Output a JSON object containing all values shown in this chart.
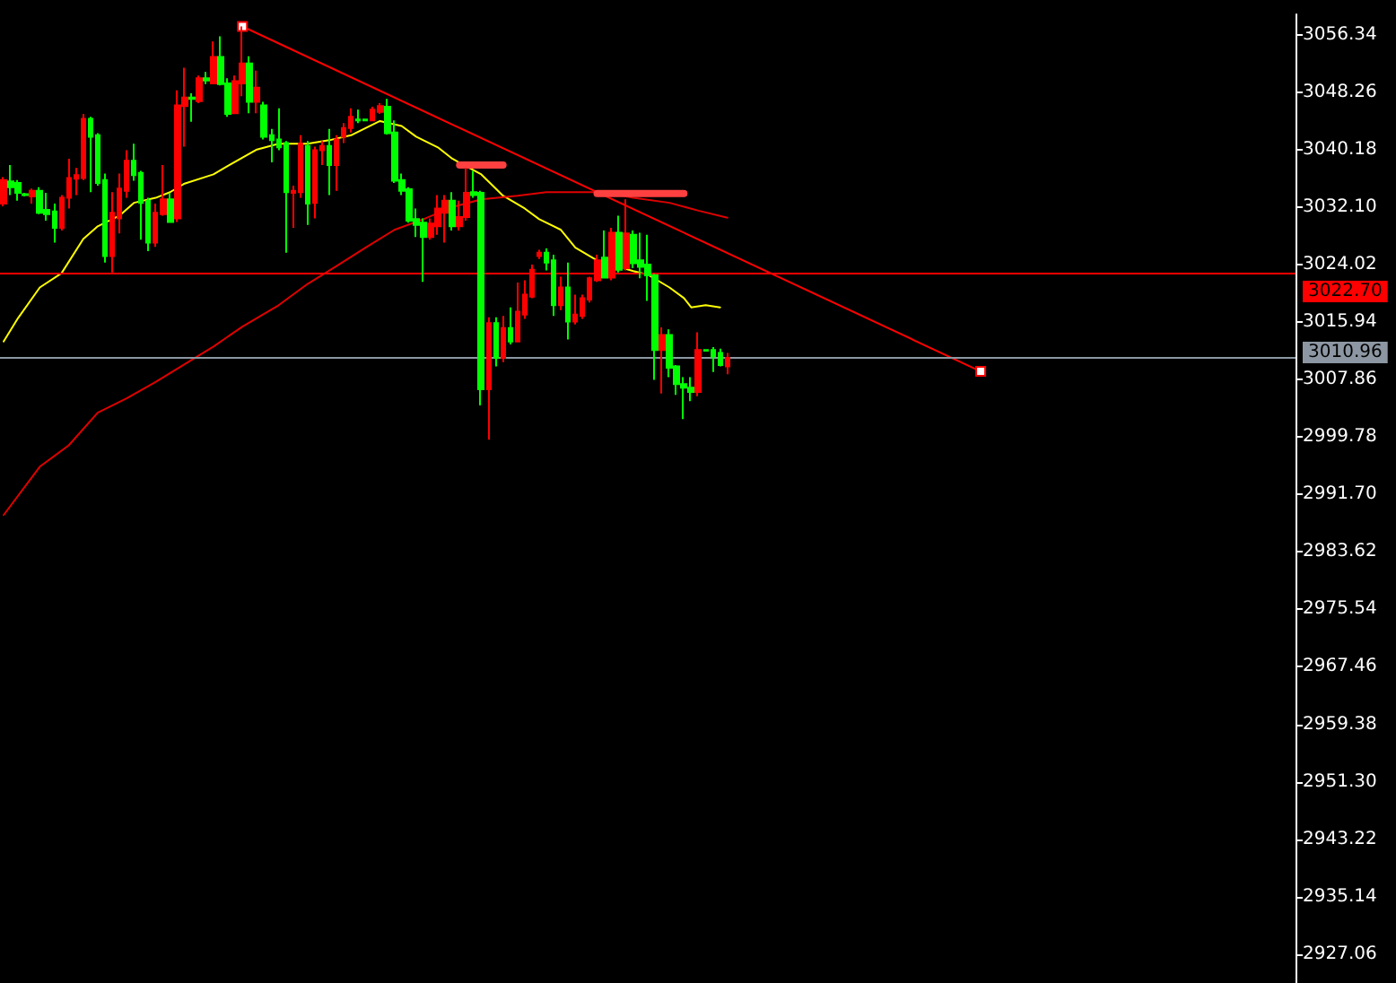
{
  "chart_data": {
    "type": "candlestick",
    "categories": [
      null,
      null,
      null,
      null,
      null,
      null,
      null,
      null,
      null,
      null,
      null,
      null,
      null,
      null,
      null,
      null,
      null,
      null,
      null,
      null,
      null,
      null,
      null,
      null,
      null,
      null,
      null,
      null,
      null,
      null,
      null,
      null,
      null,
      null,
      null,
      null,
      null,
      null,
      null,
      null,
      null,
      null,
      null,
      null,
      null,
      null,
      null,
      null,
      null,
      null,
      null,
      null,
      null,
      null,
      null,
      null,
      null,
      null,
      null,
      null,
      null,
      null,
      null,
      null,
      null,
      null,
      null,
      null,
      null,
      null,
      null,
      null,
      null,
      null,
      null,
      null,
      null,
      null,
      null,
      null,
      null,
      null,
      null,
      null,
      null,
      null,
      null,
      null,
      null,
      null,
      null,
      null,
      null,
      null,
      null,
      null,
      null,
      null,
      null,
      null,
      null,
      null,
      null,
      null,
      null,
      null,
      null,
      null,
      null,
      null,
      null,
      null,
      null,
      null,
      null,
      null,
      null,
      null,
      null,
      null,
      null,
      null,
      null,
      null,
      null,
      null,
      null,
      null,
      null,
      null,
      null,
      null,
      null,
      null,
      null,
      null,
      null,
      null,
      null,
      null,
      null,
      null,
      null,
      null,
      null,
      null,
      null,
      null,
      null,
      null,
      null,
      null,
      null,
      null,
      null,
      null,
      null,
      null,
      null,
      null,
      null,
      null,
      null,
      null,
      null,
      null,
      null,
      null,
      null,
      null,
      null,
      null,
      null,
      null,
      null,
      null,
      null,
      null,
      null
    ],
    "ohlc": [
      [
        3032.6,
        3036.3,
        3032.2,
        3035.9
      ],
      [
        3035.7,
        3038.0,
        3033.8,
        3034.9
      ],
      [
        3035.5,
        3035.9,
        3033.0,
        3034.1
      ],
      [
        3033.9,
        3034.1,
        3033.6,
        3033.8
      ],
      [
        3033.6,
        3034.7,
        3032.6,
        3034.4
      ],
      [
        3034.4,
        3034.9,
        3031.1,
        3031.3
      ],
      [
        3031.7,
        3034.1,
        3030.2,
        3031.1
      ],
      [
        3031.5,
        3032.6,
        3027.1,
        3029.2
      ],
      [
        3029.2,
        3033.8,
        3028.8,
        3033.4
      ],
      [
        3033.4,
        3038.9,
        3031.9,
        3036.2
      ],
      [
        3036.1,
        3037.6,
        3033.8,
        3036.6
      ],
      [
        3036.2,
        3045.2,
        3035.9,
        3044.5
      ],
      [
        3044.5,
        3044.8,
        3034.2,
        3042.0
      ],
      [
        3042.2,
        3042.5,
        3035.1,
        3035.5
      ],
      [
        3035.9,
        3036.8,
        3024.3,
        3025.2
      ],
      [
        3025.2,
        3034.2,
        3022.9,
        3031.3
      ],
      [
        3030.5,
        3036.8,
        3028.4,
        3034.7
      ],
      [
        3034.4,
        3040.1,
        3033.4,
        3038.6
      ],
      [
        3038.6,
        3041.0,
        3035.8,
        3036.6
      ],
      [
        3036.9,
        3037.2,
        3027.5,
        3032.7
      ],
      [
        3033.0,
        3033.4,
        3025.9,
        3027.1
      ],
      [
        3027.1,
        3032.6,
        3026.5,
        3031.3
      ],
      [
        3031.1,
        3038.0,
        3030.9,
        3033.2
      ],
      [
        3033.2,
        3034.1,
        3029.9,
        3030.0
      ],
      [
        3030.5,
        3048.5,
        3030.0,
        3046.4
      ],
      [
        3046.3,
        3051.7,
        3040.6,
        3047.5
      ],
      [
        3047.5,
        3048.1,
        3044.1,
        3047.3
      ],
      [
        3047.0,
        3050.6,
        3046.7,
        3050.2
      ],
      [
        3050.2,
        3051.1,
        3049.4,
        3049.9
      ],
      [
        3049.5,
        3055.4,
        3049.4,
        3053.2
      ],
      [
        3053.2,
        3056.1,
        3049.2,
        3049.4
      ],
      [
        3049.5,
        3050.2,
        3044.8,
        3045.2
      ],
      [
        3045.3,
        3050.6,
        3045.2,
        3049.8
      ],
      [
        3049.5,
        3057.5,
        3047.7,
        3052.3
      ],
      [
        3052.3,
        3053.3,
        3045.3,
        3046.9
      ],
      [
        3046.9,
        3051.3,
        3045.3,
        3048.9
      ],
      [
        3046.4,
        3046.9,
        3041.6,
        3042.0
      ],
      [
        3042.2,
        3043.1,
        3038.4,
        3041.5
      ],
      [
        3041.6,
        3046.0,
        3040.1,
        3040.5
      ],
      [
        3041.1,
        3041.4,
        3025.7,
        3034.2
      ],
      [
        3034.1,
        3035.1,
        3029.2,
        3034.4
      ],
      [
        3034.2,
        3042.2,
        3033.4,
        3041.0
      ],
      [
        3040.7,
        3041.4,
        3029.6,
        3032.6
      ],
      [
        3032.7,
        3040.6,
        3030.5,
        3040.1
      ],
      [
        3040.1,
        3041.4,
        3038.0,
        3040.7
      ],
      [
        3040.7,
        3043.1,
        3033.8,
        3038.0
      ],
      [
        3038.0,
        3042.2,
        3034.4,
        3041.6
      ],
      [
        3042.0,
        3043.9,
        3041.1,
        3043.2
      ],
      [
        3043.2,
        3046.0,
        3042.6,
        3044.8
      ],
      [
        3044.4,
        3045.8,
        3043.9,
        3044.3
      ],
      [
        3044.4,
        3044.5,
        3044.2,
        3044.3
      ],
      [
        3044.3,
        3046.2,
        3044.2,
        3045.8
      ],
      [
        3045.5,
        3046.7,
        3045.2,
        3046.3
      ],
      [
        3046.2,
        3047.3,
        3042.3,
        3042.5
      ],
      [
        3042.6,
        3044.3,
        3035.5,
        3035.8
      ],
      [
        3035.9,
        3036.8,
        3033.8,
        3034.4
      ],
      [
        3034.6,
        3034.9,
        3029.9,
        3030.2
      ],
      [
        3030.4,
        3031.9,
        3027.9,
        3029.6
      ],
      [
        3029.9,
        3030.5,
        3021.6,
        3027.9
      ],
      [
        3027.9,
        3030.5,
        3027.5,
        3029.8
      ],
      [
        3029.4,
        3033.8,
        3028.2,
        3031.9
      ],
      [
        3031.3,
        3033.8,
        3027.1,
        3033.0
      ],
      [
        3033.0,
        3034.2,
        3028.8,
        3029.4
      ],
      [
        3029.4,
        3033.0,
        3028.8,
        3030.7
      ],
      [
        3030.7,
        3037.6,
        3030.2,
        3034.1
      ],
      [
        3034.2,
        3037.2,
        3033.4,
        3033.8
      ],
      [
        3034.1,
        3034.4,
        3004.2,
        3006.5
      ],
      [
        3006.5,
        3016.6,
        2999.4,
        3015.8
      ],
      [
        3015.8,
        3016.6,
        3009.7,
        3010.9
      ],
      [
        3010.9,
        3016.8,
        3010.3,
        3015.1
      ],
      [
        3015.1,
        3018.0,
        3012.8,
        3013.2
      ],
      [
        3013.2,
        3021.5,
        3013.1,
        3017.4
      ],
      [
        3017.0,
        3021.8,
        3016.4,
        3019.8
      ],
      [
        3019.5,
        3024.0,
        3019.3,
        3023.3
      ],
      [
        3025.2,
        3026.1,
        3024.8,
        3025.7
      ],
      [
        3025.7,
        3026.3,
        3023.2,
        3024.3
      ],
      [
        3024.6,
        3025.4,
        3016.8,
        3018.3
      ],
      [
        3018.3,
        3022.3,
        3017.6,
        3020.8
      ],
      [
        3020.8,
        3024.3,
        3013.5,
        3016.0
      ],
      [
        3016.0,
        3019.8,
        3015.6,
        3017.0
      ],
      [
        3016.8,
        3019.8,
        3016.4,
        3019.3
      ],
      [
        3019.1,
        3022.3,
        3018.7,
        3022.1
      ],
      [
        3021.8,
        3025.4,
        3021.6,
        3024.6
      ],
      [
        3025.0,
        3028.8,
        3022.1,
        3022.2
      ],
      [
        3022.2,
        3029.2,
        3021.8,
        3028.5
      ],
      [
        3028.5,
        3030.9,
        3022.9,
        3023.3
      ],
      [
        3023.5,
        3033.2,
        3023.2,
        3028.4
      ],
      [
        3028.2,
        3028.8,
        3023.5,
        3024.2
      ],
      [
        3024.6,
        3028.5,
        3022.1,
        3023.7
      ],
      [
        3024.0,
        3028.2,
        3018.9,
        3022.5
      ],
      [
        3022.5,
        3022.7,
        3007.8,
        3012.0
      ],
      [
        3012.0,
        3015.2,
        3005.9,
        3014.1
      ],
      [
        3014.1,
        3014.9,
        3008.2,
        3009.5
      ],
      [
        3009.7,
        3009.9,
        3005.7,
        3007.2
      ],
      [
        3007.2,
        3008.2,
        3002.3,
        3006.7
      ],
      [
        3006.7,
        3008.2,
        3004.8,
        3006.1
      ],
      [
        3006.1,
        3014.5,
        3005.5,
        3012.0
      ],
      [
        3012.0,
        3012.1,
        3011.8,
        3011.9
      ],
      [
        3012.0,
        3012.4,
        3008.9,
        3011.1
      ],
      [
        3011.6,
        3012.2,
        3009.7,
        3009.9
      ],
      [
        3009.7,
        3011.6,
        3008.6,
        3010.9
      ],
      null,
      null,
      null,
      null,
      null,
      null,
      null,
      null,
      null,
      null,
      null,
      null,
      null,
      null,
      null,
      null,
      null,
      null,
      null,
      null,
      null,
      null,
      null,
      null,
      null,
      null,
      null,
      null,
      null,
      null,
      null,
      null,
      null,
      null,
      null,
      null,
      null,
      null,
      null,
      null,
      null,
      null,
      null,
      null,
      null,
      null,
      null,
      null,
      null,
      null,
      null,
      null,
      null,
      null,
      null,
      null,
      null,
      null,
      null,
      null,
      null,
      null,
      null,
      null,
      null,
      null,
      null,
      null,
      null,
      null,
      null,
      null,
      null,
      null,
      null,
      null,
      null,
      null
    ],
    "colors": [
      "#ff0000",
      "#00ff00",
      "#00ff00",
      "#00ff00",
      "#ff0000",
      "#00ff00",
      "#00ff00",
      "#00ff00",
      "#ff0000",
      "#ff0000",
      "#ff0000",
      "#ff0000",
      "#00ff00",
      "#00ff00",
      "#00ff00",
      "#ff0000",
      "#ff0000",
      "#ff0000",
      "#00ff00",
      "#00ff00",
      "#00ff00",
      "#ff0000",
      "#ff0000",
      "#00ff00",
      "#ff0000",
      "#ff0000",
      "#00ff00",
      "#ff0000",
      "#00ff00",
      "#ff0000",
      "#00ff00",
      "#00ff00",
      "#ff0000",
      "#ff0000",
      "#00ff00",
      "#ff0000",
      "#00ff00",
      "#00ff00",
      "#00ff00",
      "#00ff00",
      "#ff0000",
      "#ff0000",
      "#00ff00",
      "#ff0000",
      "#ff0000",
      "#00ff00",
      "#ff0000",
      "#ff0000",
      "#ff0000",
      "#00ff00",
      "#00ff00",
      "#ff0000",
      "#ff0000",
      "#00ff00",
      "#00ff00",
      "#00ff00",
      "#00ff00",
      "#00ff00",
      "#00ff00",
      "#ff0000",
      "#ff0000",
      "#ff0000",
      "#00ff00",
      "#ff0000",
      "#ff0000",
      "#00ff00",
      "#00ff00",
      "#ff0000",
      "#00ff00",
      "#ff0000",
      "#00ff00",
      "#ff0000",
      "#ff0000",
      "#ff0000",
      "#ff0000",
      "#00ff00",
      "#00ff00",
      "#ff0000",
      "#00ff00",
      "#ff0000",
      "#ff0000",
      "#ff0000",
      "#ff0000",
      "#00ff00",
      "#ff0000",
      "#00ff00",
      "#ff0000",
      "#00ff00",
      "#00ff00",
      "#00ff00",
      "#00ff00",
      "#ff0000",
      "#00ff00",
      "#00ff00",
      "#00ff00",
      "#00ff00",
      "#ff0000",
      "#00ff00",
      "#00ff00",
      "#00ff00",
      "#ff0000",
      null,
      null,
      null,
      null,
      null,
      null,
      null,
      null,
      null,
      null,
      null,
      null,
      null,
      null,
      null,
      null,
      null,
      null,
      null,
      null,
      null,
      null,
      null,
      null,
      null,
      null,
      null,
      null,
      null,
      null,
      null,
      null,
      null,
      null,
      null,
      null,
      null,
      null,
      null,
      null,
      null,
      null,
      null,
      null,
      null,
      null,
      null,
      null,
      null,
      null,
      null,
      null,
      null,
      null,
      null,
      null,
      null,
      null,
      null,
      null,
      null,
      null,
      null,
      null,
      null,
      null,
      null,
      null,
      null,
      null,
      null,
      null,
      null,
      null,
      null,
      null,
      null,
      null
    ],
    "series": [
      {
        "type": "line",
        "color": "#ffff00",
        "marker": "none",
        "values": [
          3013.2,
          null,
          3016.5,
          null,
          null,
          3020.8,
          null,
          null,
          3022.8,
          null,
          null,
          3027.6,
          null,
          3029.4,
          null,
          null,
          3030.9,
          null,
          3032.7,
          null,
          null,
          3033.4,
          null,
          3034.2,
          null,
          3035.4,
          null,
          null,
          null,
          3036.7,
          null,
          3037.9,
          null,
          null,
          null,
          3040.2,
          null,
          null,
          3041.0,
          null,
          null,
          null,
          3041.0,
          null,
          null,
          3041.5,
          null,
          null,
          3042.2,
          null,
          3043.2,
          null,
          3044.2,
          null,
          null,
          3043.5,
          null,
          3042.0,
          null,
          null,
          3040.5,
          null,
          3038.9,
          null,
          null,
          null,
          3036.7,
          null,
          3034.7,
          3033.7,
          null,
          null,
          3031.9,
          null,
          3030.4,
          null,
          null,
          3028.9,
          null,
          3026.4,
          null,
          null,
          3024.6,
          null,
          null,
          null,
          null,
          3023.1,
          null,
          3022.6,
          null,
          null,
          3020.8,
          null,
          3019.3,
          3018.0,
          null,
          3018.3,
          null,
          3018.0,
          null,
          null,
          null,
          null,
          null,
          null,
          null,
          null,
          null,
          null,
          null,
          null,
          null,
          null,
          null,
          null,
          null,
          null,
          null,
          null,
          null,
          null,
          null,
          null,
          null,
          null,
          null,
          null,
          null,
          null,
          null,
          null,
          null,
          null,
          null,
          null,
          null,
          null,
          null,
          null,
          null,
          null,
          null,
          null,
          null,
          null,
          null,
          null,
          null,
          null,
          null,
          null,
          null,
          null,
          null,
          null,
          null,
          null,
          null,
          null,
          null,
          null,
          null,
          null,
          null,
          null,
          null,
          null,
          null,
          null,
          null,
          null,
          null,
          null,
          null,
          null,
          null,
          null,
          null
        ]
      },
      {
        "type": "line",
        "color": "#e00000",
        "marker": "none",
        "values": [
          2988.8,
          null,
          null,
          null,
          null,
          2995.6,
          null,
          null,
          null,
          2998.6,
          null,
          null,
          null,
          3003.2,
          null,
          null,
          null,
          3005.2,
          null,
          null,
          null,
          3007.5,
          null,
          null,
          null,
          3010.0,
          null,
          null,
          null,
          3012.5,
          null,
          null,
          null,
          3015.3,
          null,
          null,
          null,
          null,
          3018.3,
          null,
          null,
          null,
          3021.3,
          null,
          null,
          null,
          3023.8,
          null,
          null,
          null,
          3026.4,
          null,
          null,
          null,
          3028.9,
          null,
          null,
          null,
          3030.4,
          null,
          null,
          null,
          3032.1,
          null,
          null,
          null,
          3033.2,
          null,
          null,
          null,
          null,
          3033.7,
          null,
          null,
          null,
          3034.2,
          null,
          null,
          null,
          3034.2,
          null,
          null,
          null,
          3034.2,
          null,
          null,
          null,
          3033.4,
          null,
          null,
          null,
          null,
          3032.7,
          null,
          null,
          null,
          3031.6,
          null,
          null,
          null,
          3030.6,
          null,
          null,
          null,
          null,
          null,
          null,
          null,
          null,
          null,
          null,
          null,
          null,
          null,
          null,
          null,
          null,
          null,
          null,
          null,
          null,
          null,
          null,
          null,
          null,
          null,
          null,
          null,
          null,
          null,
          null,
          null,
          null,
          null,
          null,
          null,
          null,
          null,
          null,
          null,
          null,
          null,
          null,
          null,
          null,
          null,
          null,
          null,
          null,
          null,
          null,
          null,
          null,
          null,
          null,
          null,
          null,
          null,
          null,
          null,
          null,
          null,
          null,
          null,
          null,
          null,
          null,
          null,
          null,
          null,
          null,
          null,
          null,
          null,
          null,
          null,
          null,
          null,
          null
        ]
      },
      {
        "type": "line",
        "color": "#ff0000",
        "marker": "square",
        "values": [
          null,
          null,
          null,
          null,
          null,
          null,
          null,
          null,
          null,
          null,
          null,
          null,
          null,
          null,
          null,
          null,
          null,
          null,
          null,
          null,
          null,
          null,
          null,
          null,
          null,
          null,
          null,
          null,
          null,
          null,
          null,
          null,
          null,
          3057.5,
          null,
          null,
          null,
          null,
          null,
          null,
          null,
          null,
          null,
          null,
          null,
          null,
          null,
          null,
          null,
          null,
          null,
          null,
          null,
          null,
          null,
          null,
          null,
          null,
          null,
          null,
          null,
          null,
          null,
          null,
          null,
          null,
          null,
          null,
          null,
          null,
          null,
          null,
          null,
          null,
          null,
          null,
          null,
          null,
          null,
          null,
          null,
          null,
          null,
          null,
          null,
          null,
          null,
          null,
          null,
          null,
          null,
          null,
          null,
          null,
          null,
          null,
          null,
          null,
          null,
          null,
          null,
          null,
          null,
          null,
          null,
          null,
          null,
          null,
          null,
          null,
          null,
          null,
          null,
          null,
          null,
          null,
          null,
          null,
          null,
          null,
          null,
          null,
          null,
          null,
          null,
          null,
          null,
          null,
          null,
          null,
          null,
          null,
          null,
          null,
          null,
          3009.0,
          null,
          null,
          null,
          null,
          null,
          null,
          null,
          null,
          null,
          null,
          null,
          null,
          null,
          null,
          null,
          null,
          null,
          null,
          null,
          null,
          null,
          null,
          null,
          null,
          null,
          null,
          null,
          null,
          null,
          null,
          null,
          null,
          null,
          null,
          null,
          null,
          null,
          null,
          null,
          null,
          null,
          null,
          null
        ]
      },
      {
        "type": "line",
        "color": "#ff4040",
        "marker": "none",
        "values": [
          null,
          null,
          null,
          null,
          null,
          null,
          null,
          null,
          null,
          null,
          null,
          null,
          null,
          null,
          null,
          null,
          null,
          null,
          null,
          null,
          null,
          null,
          null,
          null,
          null,
          null,
          null,
          null,
          null,
          null,
          null,
          null,
          null,
          null,
          null,
          null,
          null,
          null,
          null,
          null,
          null,
          null,
          null,
          null,
          null,
          null,
          null,
          null,
          null,
          null,
          null,
          null,
          null,
          null,
          null,
          null,
          null,
          null,
          null,
          null,
          null,
          null,
          null,
          3038.0,
          null,
          null,
          null,
          null,
          null,
          3038.0,
          null,
          null,
          null,
          null,
          null,
          null,
          null,
          null,
          null,
          null,
          null,
          null,
          null,
          null,
          null,
          null,
          null,
          null,
          null,
          null,
          null,
          null,
          null,
          null,
          null,
          null,
          null,
          null,
          null,
          null,
          null,
          null,
          null,
          null,
          null,
          null,
          null,
          null,
          null,
          null,
          null,
          null,
          null,
          null,
          null,
          null,
          null,
          null,
          null,
          null,
          null,
          null,
          null,
          null,
          null,
          null,
          null,
          null,
          null,
          null,
          null,
          null,
          null,
          null,
          null,
          null,
          null,
          null,
          null,
          null,
          null,
          null,
          null,
          null,
          null,
          null,
          null,
          null,
          null,
          null,
          null,
          null,
          null,
          null,
          null,
          null,
          null,
          null,
          null,
          null,
          null,
          null,
          null,
          null,
          null,
          null,
          null,
          null,
          null,
          null,
          null,
          null,
          null,
          null,
          null,
          null,
          null,
          null,
          null
        ]
      },
      {
        "type": "line",
        "color": "#ff4040",
        "marker": "none",
        "values": [
          null,
          null,
          null,
          null,
          null,
          null,
          null,
          null,
          null,
          null,
          null,
          null,
          null,
          null,
          null,
          null,
          null,
          null,
          null,
          null,
          null,
          null,
          null,
          null,
          null,
          null,
          null,
          null,
          null,
          null,
          null,
          null,
          null,
          null,
          null,
          null,
          null,
          null,
          null,
          null,
          null,
          null,
          null,
          null,
          null,
          null,
          null,
          null,
          null,
          null,
          null,
          null,
          null,
          null,
          null,
          null,
          null,
          null,
          null,
          null,
          null,
          null,
          null,
          null,
          null,
          null,
          null,
          null,
          null,
          null,
          null,
          null,
          null,
          null,
          null,
          null,
          null,
          null,
          null,
          null,
          null,
          null,
          3034.0,
          null,
          null,
          null,
          null,
          null,
          null,
          null,
          null,
          null,
          null,
          null,
          3034.0,
          null,
          null,
          null,
          null,
          null,
          null,
          null,
          null,
          null,
          null,
          null,
          null,
          null,
          null,
          null,
          null,
          null,
          null,
          null,
          null,
          null,
          null,
          null,
          null,
          null,
          null,
          null,
          null,
          null,
          null,
          null,
          null,
          null,
          null,
          null,
          null,
          null,
          null,
          null,
          null,
          null,
          null,
          null,
          null,
          null,
          null,
          null,
          null,
          null,
          null,
          null,
          null,
          null,
          null,
          null,
          null,
          null,
          null,
          null,
          null,
          null,
          null,
          null,
          null,
          null,
          null,
          null,
          null,
          null,
          null,
          null,
          null,
          null,
          null,
          null,
          null,
          null,
          null,
          null,
          null,
          null,
          null,
          null,
          null
        ]
      }
    ],
    "ref_lines": [
      {
        "axis": "y",
        "value": 3022.7,
        "label": "3022.70",
        "color": "#ff0000"
      },
      {
        "axis": "y",
        "value": 3010.96,
        "label": "3010.96",
        "color": "#8c97a3"
      }
    ],
    "ylim": [
      2923.0,
      3059.2
    ],
    "yticks": [
      3056.34,
      3048.26,
      3040.18,
      {
        "value": 3032.1,
        "label": "3032.10"
      },
      3024.02,
      3015.94,
      3007.86,
      2999.78,
      {
        "value": 2991.7,
        "label": "2991.70"
      },
      2983.62,
      2975.54,
      2967.46,
      2959.38,
      {
        "value": 2951.3,
        "label": "2951.30"
      },
      2943.22,
      2935.14,
      2927.06
    ],
    "tick_labels": "y",
    "grid": false
  }
}
